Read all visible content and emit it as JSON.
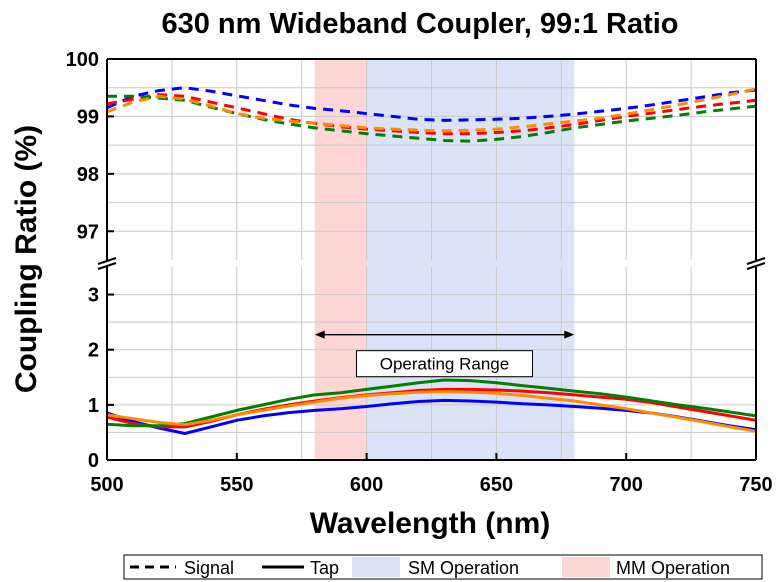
{
  "chart_data": {
    "type": "line",
    "title": "630 nm Wideband Coupler, 99:1 Ratio",
    "xlabel": "Wavelength (nm)",
    "ylabel": "Coupling Ratio (%)",
    "xlim": [
      500,
      750
    ],
    "x_ticks": [
      "500",
      "550",
      "600",
      "650",
      "700",
      "750"
    ],
    "y_upper_range": [
      96.5,
      100
    ],
    "y_upper_ticks": [
      "97",
      "98",
      "99",
      "100"
    ],
    "y_lower_range": [
      0,
      3.5
    ],
    "y_lower_ticks": [
      "0",
      "1",
      "2",
      "3"
    ],
    "axis_break": true,
    "grid": true,
    "x": [
      500,
      510,
      520,
      530,
      540,
      550,
      560,
      570,
      580,
      590,
      600,
      610,
      620,
      630,
      640,
      650,
      660,
      670,
      680,
      690,
      700,
      710,
      720,
      730,
      740,
      750
    ],
    "series": [
      {
        "color": "#0000ff",
        "linestyle": "dashed",
        "values": [
          99.15,
          99.35,
          99.45,
          99.5,
          99.44,
          99.36,
          99.28,
          99.2,
          99.14,
          99.1,
          99.05,
          99.0,
          98.95,
          98.93,
          98.94,
          98.95,
          98.97,
          99.0,
          99.04,
          99.09,
          99.14,
          99.2,
          99.27,
          99.34,
          99.41,
          99.46
        ]
      },
      {
        "color": "#ff0000",
        "linestyle": "dashed",
        "values": [
          99.22,
          99.3,
          99.38,
          99.35,
          99.25,
          99.15,
          99.05,
          98.95,
          98.88,
          98.82,
          98.78,
          98.75,
          98.72,
          98.7,
          98.7,
          98.72,
          98.75,
          98.8,
          98.86,
          98.93,
          99.0,
          99.06,
          99.12,
          99.18,
          99.23,
          99.28
        ]
      },
      {
        "color": "#008000",
        "linestyle": "dashed",
        "values": [
          99.35,
          99.35,
          99.32,
          99.28,
          99.16,
          99.05,
          98.95,
          98.87,
          98.8,
          98.75,
          98.7,
          98.66,
          98.62,
          98.58,
          98.57,
          98.6,
          98.65,
          98.72,
          98.8,
          98.86,
          98.92,
          98.97,
          99.02,
          99.08,
          99.13,
          99.18
        ]
      },
      {
        "color": "#ff8c00",
        "linestyle": "dashed",
        "values": [
          99.08,
          99.25,
          99.35,
          99.3,
          99.18,
          99.05,
          98.97,
          98.92,
          98.88,
          98.84,
          98.8,
          98.78,
          98.76,
          98.75,
          98.76,
          98.78,
          98.82,
          98.87,
          98.92,
          98.97,
          99.04,
          99.12,
          99.2,
          99.29,
          99.38,
          99.48
        ]
      },
      {
        "color": "#0000ff",
        "linestyle": "solid",
        "values": [
          0.85,
          0.7,
          0.58,
          0.48,
          0.6,
          0.72,
          0.8,
          0.86,
          0.9,
          0.93,
          0.97,
          1.02,
          1.06,
          1.08,
          1.07,
          1.05,
          1.02,
          1.0,
          0.97,
          0.94,
          0.9,
          0.85,
          0.78,
          0.7,
          0.62,
          0.55
        ]
      },
      {
        "color": "#ff0000",
        "linestyle": "solid",
        "values": [
          0.78,
          0.66,
          0.6,
          0.6,
          0.7,
          0.82,
          0.92,
          1.0,
          1.07,
          1.13,
          1.18,
          1.22,
          1.26,
          1.28,
          1.28,
          1.27,
          1.25,
          1.22,
          1.18,
          1.14,
          1.1,
          1.04,
          0.96,
          0.88,
          0.8,
          0.72
        ]
      },
      {
        "color": "#008000",
        "linestyle": "solid",
        "values": [
          0.65,
          0.62,
          0.62,
          0.66,
          0.78,
          0.9,
          1.0,
          1.1,
          1.18,
          1.22,
          1.28,
          1.34,
          1.4,
          1.45,
          1.44,
          1.4,
          1.35,
          1.3,
          1.25,
          1.2,
          1.14,
          1.07,
          1.0,
          0.94,
          0.87,
          0.8
        ]
      },
      {
        "color": "#ff8c00",
        "linestyle": "solid",
        "values": [
          0.82,
          0.75,
          0.68,
          0.64,
          0.72,
          0.82,
          0.9,
          0.98,
          1.05,
          1.12,
          1.17,
          1.2,
          1.23,
          1.24,
          1.23,
          1.21,
          1.17,
          1.12,
          1.07,
          1.0,
          0.93,
          0.85,
          0.77,
          0.69,
          0.6,
          0.52
        ]
      }
    ],
    "bands": [
      {
        "label": "MM Operation",
        "x_range": [
          580,
          600
        ],
        "color": "#ffd6d6"
      },
      {
        "label": "SM Operation",
        "x_range": [
          600,
          680
        ],
        "color": "#dbe3f6"
      }
    ],
    "annotation": {
      "text": "Operating Range",
      "x_range": [
        580,
        680
      ],
      "y_value": 2.2
    },
    "legend": {
      "placement": "bottom",
      "items": [
        {
          "label": "Signal",
          "kind": "dashed-line"
        },
        {
          "label": "Tap",
          "kind": "solid-line"
        },
        {
          "label": "SM Operation",
          "kind": "patch",
          "color": "#dbe3f6"
        },
        {
          "label": "MM Operation",
          "kind": "patch",
          "color": "#ffd6d6"
        }
      ]
    }
  }
}
